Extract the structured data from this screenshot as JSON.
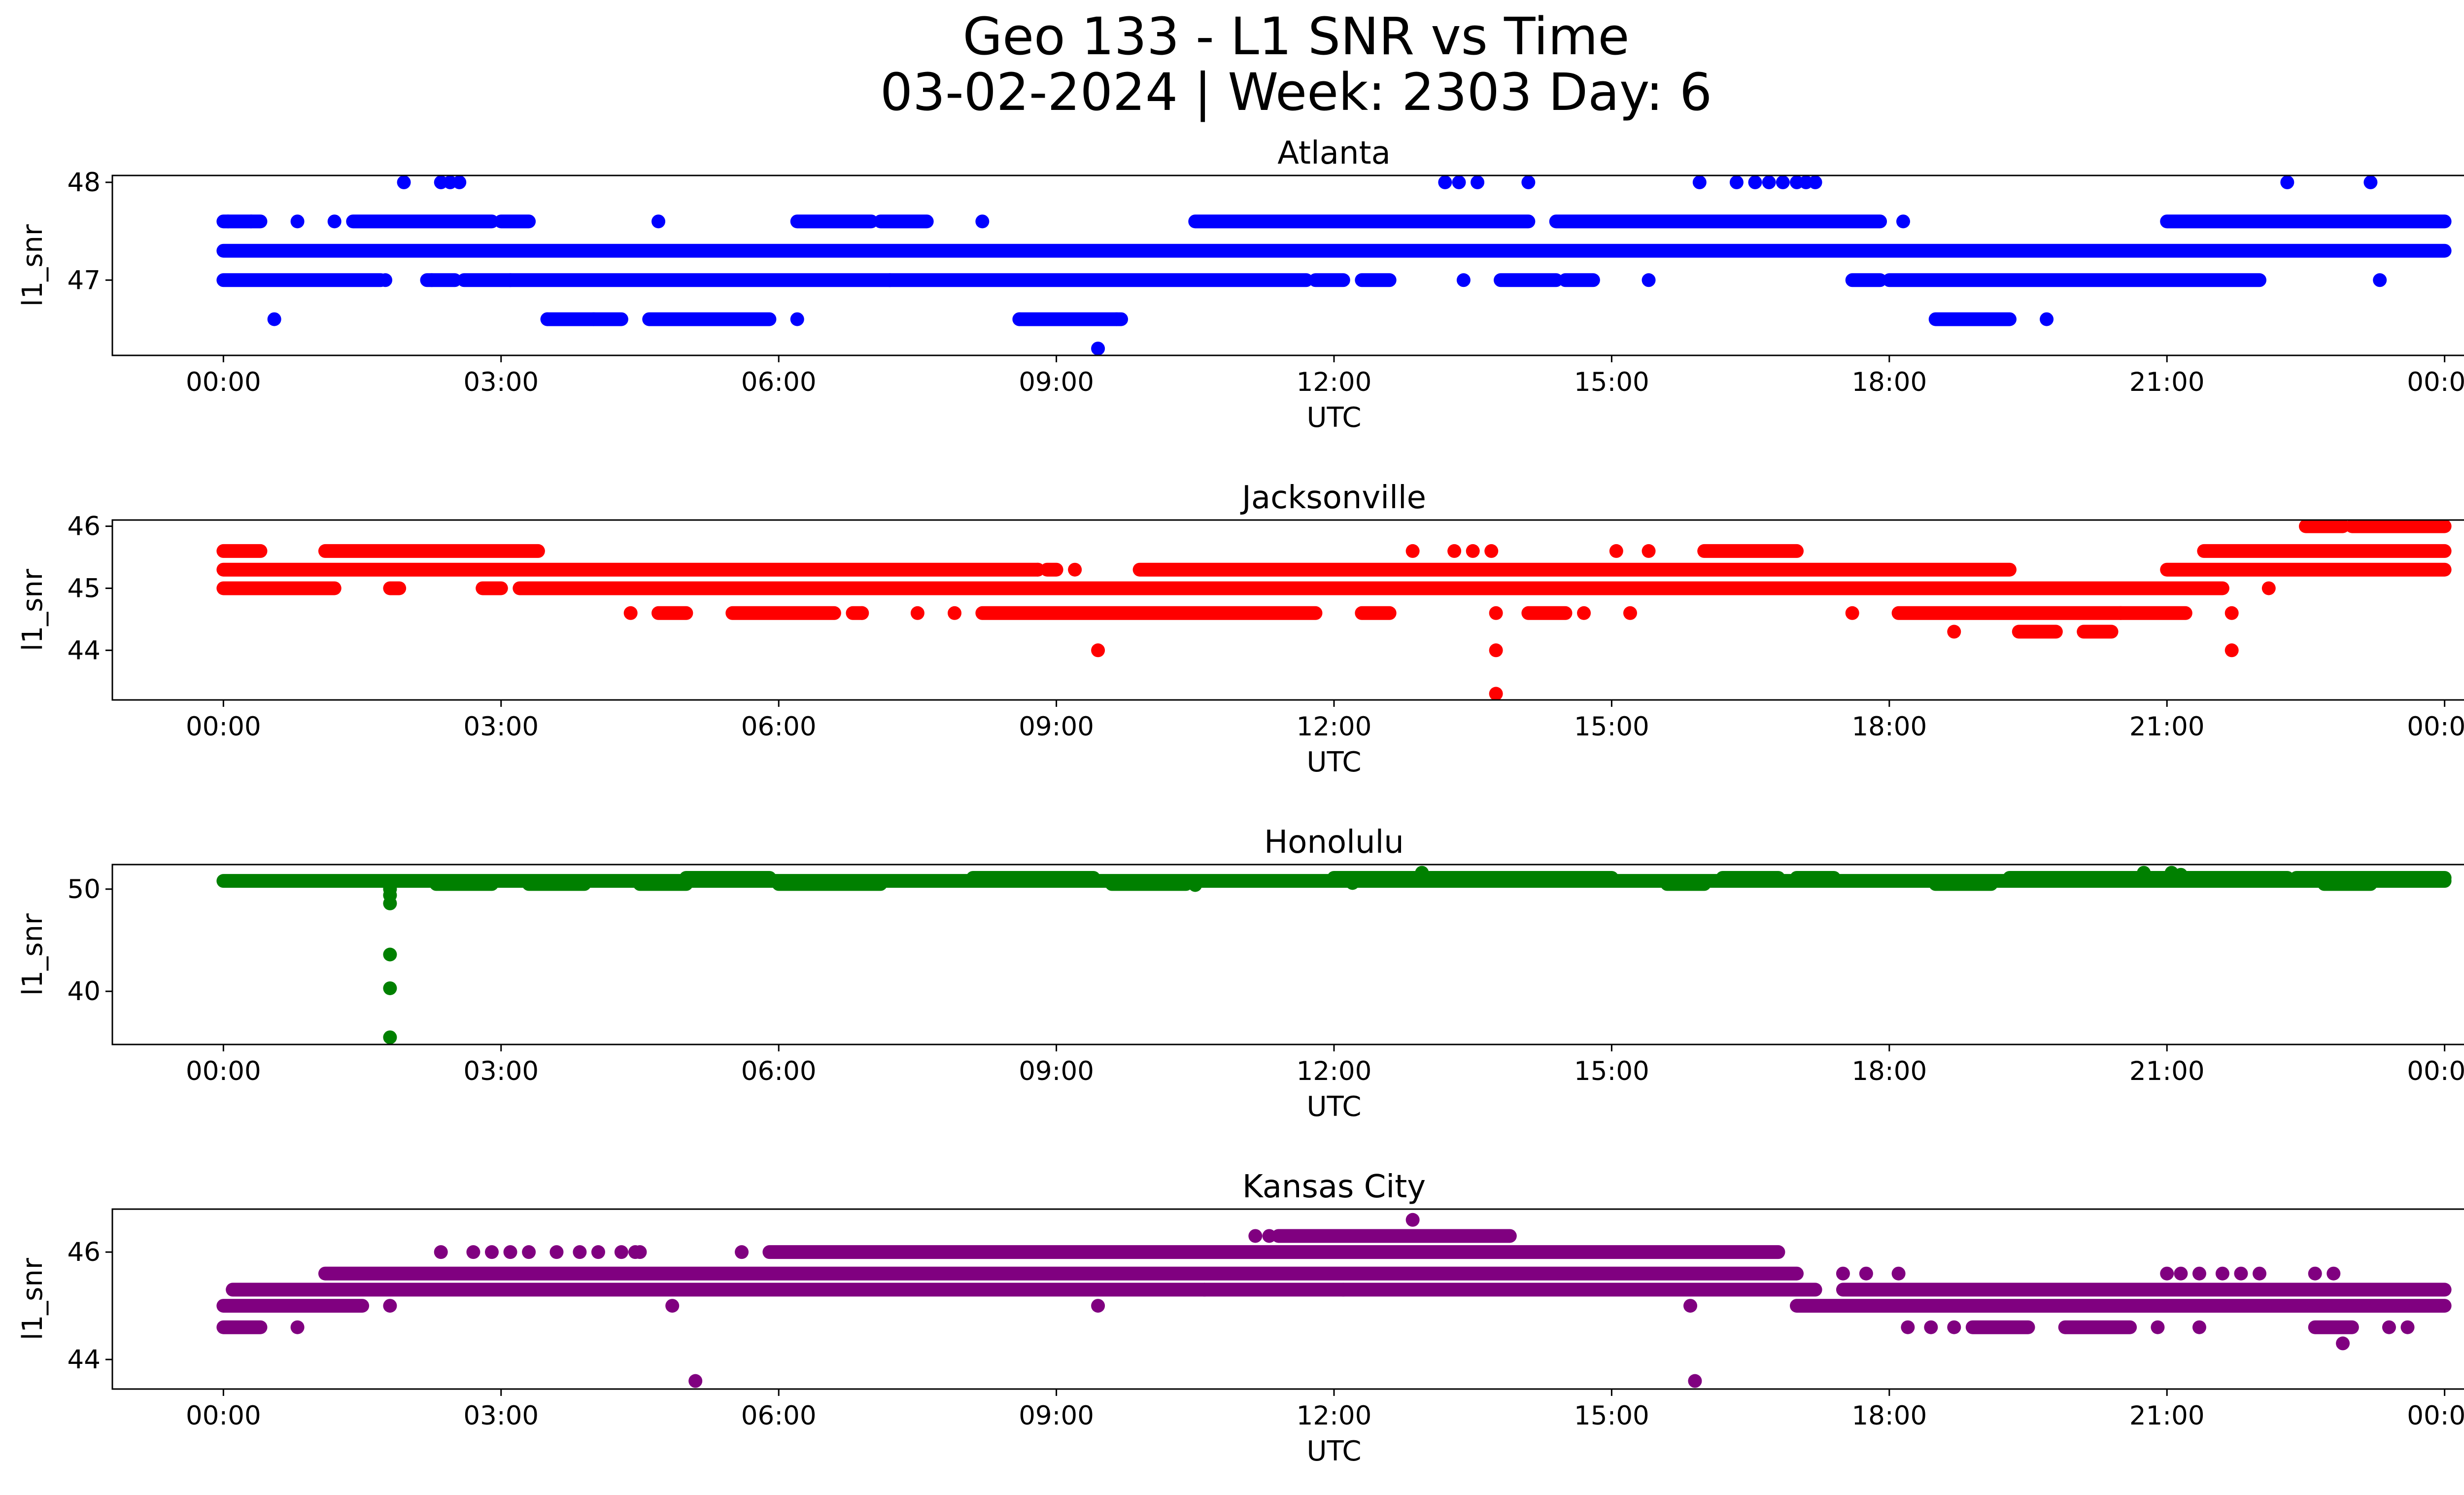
{
  "figure": {
    "title_line1": "Geo 133 - L1 SNR vs Time",
    "title_line2": "03-02-2024 | Week: 2303 Day: 6"
  },
  "chart_data": [
    {
      "type": "scatter",
      "title": "Atlanta",
      "xlabel": "UTC",
      "ylabel": "l1_snr",
      "color": "#0000ff",
      "x_ticks": [
        "00:00",
        "03:00",
        "06:00",
        "09:00",
        "12:00",
        "15:00",
        "18:00",
        "21:00",
        "00:00"
      ],
      "y_ticks": [
        47,
        48
      ],
      "ylim": [
        46.23,
        48.07
      ],
      "xlim_hours": [
        -1.2,
        25.2
      ],
      "series": [
        {
          "bands": [
            {
              "y": 47.3,
              "ranges": [
                [
                  0.0,
                  24.0
                ]
              ]
            },
            {
              "y": 47.0,
              "ranges": [
                [
                  0.0,
                  1.7
                ],
                [
                  2.2,
                  2.5
                ],
                [
                  2.6,
                  11.7
                ],
                [
                  11.8,
                  12.1
                ],
                [
                  12.3,
                  12.6
                ],
                [
                  13.8,
                  14.4
                ],
                [
                  14.5,
                  14.8
                ],
                [
                  17.6,
                  17.9
                ],
                [
                  18.0,
                  22.0
                ]
              ]
            },
            {
              "y": 47.6,
              "ranges": [
                [
                  0.0,
                  0.4
                ],
                [
                  1.4,
                  2.9
                ],
                [
                  3.0,
                  3.3
                ],
                [
                  6.2,
                  7.0
                ],
                [
                  7.1,
                  7.6
                ],
                [
                  10.5,
                  14.1
                ],
                [
                  14.4,
                  17.9
                ],
                [
                  21.0,
                  24.0
                ]
              ]
            },
            {
              "y": 46.6,
              "ranges": [
                [
                  3.5,
                  4.3
                ],
                [
                  4.6,
                  5.9
                ],
                [
                  8.6,
                  9.7
                ],
                [
                  18.5,
                  19.3
                ]
              ]
            }
          ],
          "points": [
            [
              0.05,
              47.6
            ],
            [
              0.3,
              47.6
            ],
            [
              0.8,
              47.6
            ],
            [
              1.2,
              47.6
            ],
            [
              4.7,
              47.6
            ],
            [
              8.2,
              47.6
            ],
            [
              18.15,
              47.6
            ],
            [
              1.75,
              47.0
            ],
            [
              2.25,
              47.0
            ],
            [
              3.1,
              47.0
            ],
            [
              7.2,
              47.0
            ],
            [
              13.4,
              47.0
            ],
            [
              15.4,
              47.0
            ],
            [
              23.3,
              47.0
            ],
            [
              0.55,
              46.6
            ],
            [
              3.5,
              46.6
            ],
            [
              4.0,
              46.6
            ],
            [
              6.2,
              46.6
            ],
            [
              8.6,
              46.6
            ],
            [
              19.7,
              46.6
            ],
            [
              9.65,
              46.6
            ],
            [
              1.95,
              48.0
            ],
            [
              2.35,
              48.0
            ],
            [
              2.45,
              48.0
            ],
            [
              2.55,
              48.0
            ],
            [
              13.2,
              48.0
            ],
            [
              13.35,
              48.0
            ],
            [
              13.55,
              48.0
            ],
            [
              14.1,
              48.0
            ],
            [
              15.95,
              48.0
            ],
            [
              16.35,
              48.0
            ],
            [
              16.55,
              48.0
            ],
            [
              16.7,
              48.0
            ],
            [
              16.85,
              48.0
            ],
            [
              17.0,
              48.0
            ],
            [
              17.1,
              48.0
            ],
            [
              17.2,
              48.0
            ],
            [
              22.3,
              48.0
            ],
            [
              23.2,
              48.0
            ],
            [
              9.45,
              46.3
            ]
          ]
        }
      ]
    },
    {
      "type": "scatter",
      "title": "Jacksonville",
      "xlabel": "UTC",
      "ylabel": "l1_snr",
      "color": "#ff0000",
      "x_ticks": [
        "00:00",
        "03:00",
        "06:00",
        "09:00",
        "12:00",
        "15:00",
        "18:00",
        "21:00",
        "00:00"
      ],
      "y_ticks": [
        44,
        45,
        46
      ],
      "ylim": [
        43.2,
        46.1
      ],
      "xlim_hours": [
        -1.2,
        25.2
      ],
      "series": [
        {
          "bands": [
            {
              "y": 45.3,
              "ranges": [
                [
                  0.0,
                  8.8
                ],
                [
                  8.9,
                  9.0
                ],
                [
                  9.9,
                  19.3
                ],
                [
                  21.0,
                  24.0
                ]
              ]
            },
            {
              "y": 45.0,
              "ranges": [
                [
                  0.0,
                  1.2
                ],
                [
                  1.8,
                  1.9
                ],
                [
                  2.8,
                  3.0
                ],
                [
                  3.2,
                  21.6
                ]
              ]
            },
            {
              "y": 45.6,
              "ranges": [
                [
                  0.0,
                  0.4
                ],
                [
                  1.1,
                  3.4
                ],
                [
                  16.0,
                  17.0
                ],
                [
                  21.4,
                  24.0
                ]
              ]
            },
            {
              "y": 44.6,
              "ranges": [
                [
                  4.7,
                  5.0
                ],
                [
                  5.5,
                  6.6
                ],
                [
                  6.8,
                  6.9
                ],
                [
                  8.2,
                  11.8
                ],
                [
                  12.3,
                  12.6
                ],
                [
                  14.1,
                  14.5
                ],
                [
                  18.1,
                  20.5
                ],
                [
                  20.5,
                  21.2
                ]
              ]
            },
            {
              "y": 46.0,
              "ranges": [
                [
                  22.5,
                  22.9
                ],
                [
                  23.0,
                  24.0
                ]
              ]
            },
            {
              "y": 44.3,
              "ranges": [
                [
                  19.4,
                  19.8
                ],
                [
                  20.1,
                  20.4
                ]
              ]
            }
          ],
          "points": [
            [
              12.85,
              45.6
            ],
            [
              13.3,
              45.6
            ],
            [
              13.5,
              45.6
            ],
            [
              13.7,
              45.6
            ],
            [
              15.05,
              45.6
            ],
            [
              15.4,
              45.6
            ],
            [
              4.4,
              44.6
            ],
            [
              6.9,
              44.6
            ],
            [
              7.5,
              44.6
            ],
            [
              7.9,
              44.6
            ],
            [
              13.75,
              44.6
            ],
            [
              14.7,
              44.6
            ],
            [
              15.2,
              44.6
            ],
            [
              17.6,
              44.6
            ],
            [
              21.7,
              44.6
            ],
            [
              8.8,
              45.3
            ],
            [
              9.2,
              45.3
            ],
            [
              22.1,
              45.0
            ],
            [
              18.7,
              44.3
            ],
            [
              9.45,
              44.0
            ],
            [
              13.75,
              44.0
            ],
            [
              21.7,
              44.0
            ],
            [
              13.75,
              43.3
            ]
          ]
        }
      ]
    },
    {
      "type": "scatter",
      "title": "Honolulu",
      "xlabel": "UTC",
      "ylabel": "l1_snr",
      "color": "#008000",
      "x_ticks": [
        "00:00",
        "03:00",
        "06:00",
        "09:00",
        "12:00",
        "15:00",
        "18:00",
        "21:00",
        "00:00"
      ],
      "y_ticks": [
        40,
        50
      ],
      "ylim": [
        34.8,
        52.4
      ],
      "xlim_hours": [
        -1.2,
        25.2
      ],
      "series": [
        {
          "bands": [
            {
              "y": 50.8,
              "ranges": [
                [
                  0.0,
                  24.0
                ]
              ]
            },
            {
              "y": 51.1,
              "ranges": [
                [
                  5.0,
                  5.9
                ],
                [
                  8.1,
                  9.4
                ],
                [
                  12.0,
                  15.0
                ],
                [
                  16.2,
                  16.8
                ],
                [
                  17.0,
                  17.4
                ],
                [
                  19.3,
                  22.3
                ],
                [
                  22.4,
                  24.0
                ]
              ]
            },
            {
              "y": 50.5,
              "ranges": [
                [
                  2.3,
                  2.9
                ],
                [
                  3.3,
                  3.9
                ],
                [
                  4.5,
                  5.0
                ],
                [
                  6.0,
                  7.1
                ],
                [
                  9.6,
                  10.4
                ],
                [
                  15.6,
                  16.0
                ],
                [
                  18.5,
                  19.1
                ],
                [
                  22.7,
                  23.2
                ]
              ]
            }
          ],
          "points": [
            [
              1.8,
              50.0
            ],
            [
              1.8,
              49.4
            ],
            [
              1.8,
              48.6
            ],
            [
              1.8,
              43.6
            ],
            [
              1.8,
              40.3
            ],
            [
              1.8,
              35.5
            ],
            [
              12.95,
              51.6
            ],
            [
              20.75,
              51.6
            ],
            [
              21.05,
              51.6
            ],
            [
              21.15,
              51.4
            ],
            [
              10.5,
              50.4
            ],
            [
              12.2,
              50.6
            ]
          ]
        }
      ]
    },
    {
      "type": "scatter",
      "title": "Kansas City",
      "xlabel": "UTC",
      "ylabel": "l1_snr",
      "color": "#800080",
      "x_ticks": [
        "00:00",
        "03:00",
        "06:00",
        "09:00",
        "12:00",
        "15:00",
        "18:00",
        "21:00",
        "00:00"
      ],
      "y_ticks": [
        44,
        46
      ],
      "ylim": [
        43.45,
        46.8
      ],
      "xlim_hours": [
        -1.2,
        25.2
      ],
      "series": [
        {
          "bands": [
            {
              "y": 45.3,
              "ranges": [
                [
                  0.1,
                  17.2
                ],
                [
                  17.5,
                  24.0
                ]
              ]
            },
            {
              "y": 45.0,
              "ranges": [
                [
                  0.0,
                  1.5
                ],
                [
                  17.0,
                  24.0
                ]
              ]
            },
            {
              "y": 45.6,
              "ranges": [
                [
                  1.1,
                  17.0
                ]
              ]
            },
            {
              "y": 46.0,
              "ranges": [
                [
                  5.9,
                  16.8
                ]
              ]
            },
            {
              "y": 46.3,
              "ranges": [
                [
                  11.4,
                  13.9
                ]
              ]
            },
            {
              "y": 44.6,
              "ranges": [
                [
                  0.0,
                  0.4
                ],
                [
                  18.9,
                  19.5
                ],
                [
                  19.9,
                  20.6
                ],
                [
                  22.6,
                  23.0
                ]
              ]
            }
          ],
          "points": [
            [
              2.35,
              46.0
            ],
            [
              2.7,
              46.0
            ],
            [
              2.9,
              46.0
            ],
            [
              3.1,
              46.0
            ],
            [
              3.3,
              46.0
            ],
            [
              3.6,
              46.0
            ],
            [
              3.85,
              46.0
            ],
            [
              4.05,
              46.0
            ],
            [
              4.3,
              46.0
            ],
            [
              4.45,
              46.0
            ],
            [
              4.5,
              46.0
            ],
            [
              5.6,
              46.0
            ],
            [
              11.15,
              46.3
            ],
            [
              11.3,
              46.3
            ],
            [
              17.5,
              45.6
            ],
            [
              17.75,
              45.6
            ],
            [
              18.1,
              45.6
            ],
            [
              21.0,
              45.6
            ],
            [
              21.15,
              45.6
            ],
            [
              21.35,
              45.6
            ],
            [
              21.6,
              45.6
            ],
            [
              21.8,
              45.6
            ],
            [
              22.0,
              45.6
            ],
            [
              22.6,
              45.6
            ],
            [
              22.8,
              45.6
            ],
            [
              0.8,
              44.6
            ],
            [
              18.2,
              44.6
            ],
            [
              18.45,
              44.6
            ],
            [
              18.7,
              44.6
            ],
            [
              20.9,
              44.6
            ],
            [
              21.35,
              44.6
            ],
            [
              23.4,
              44.6
            ],
            [
              23.6,
              44.6
            ],
            [
              1.8,
              45.0
            ],
            [
              4.85,
              45.0
            ],
            [
              9.45,
              45.0
            ],
            [
              10.6,
              45.3
            ],
            [
              12.1,
              45.3
            ],
            [
              15.85,
              45.0
            ],
            [
              12.85,
              46.6
            ],
            [
              22.9,
              44.3
            ],
            [
              5.1,
              43.6
            ],
            [
              15.9,
              43.6
            ]
          ]
        }
      ]
    }
  ]
}
